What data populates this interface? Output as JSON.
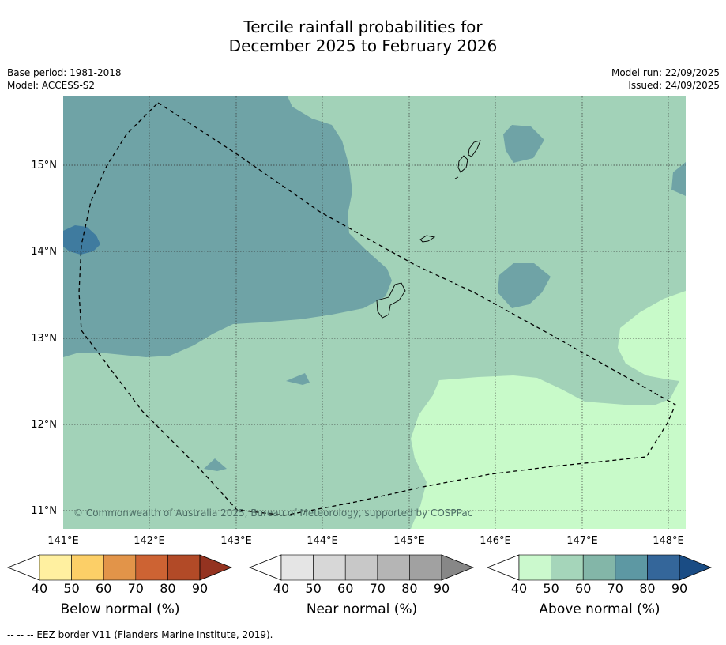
{
  "title": {
    "line1": "Tercile rainfall probabilities for",
    "line2": "December 2025 to February 2026"
  },
  "meta_left": {
    "base_period": "Base period: 1981-2018",
    "model": "Model: ACCESS-S2"
  },
  "meta_right": {
    "model_run": "Model run: 22/09/2025",
    "issued": "Issued: 24/09/2025"
  },
  "map": {
    "lon_labels": [
      "141°E",
      "142°E",
      "143°E",
      "144°E",
      "145°E",
      "146°E",
      "147°E",
      "148°E"
    ],
    "lat_labels": [
      "15°N",
      "14°N",
      "13°N",
      "12°N",
      "11°N"
    ],
    "credit": "© Commonwealth of Australia 2025, Bureau of Meteorology, supported by COSPPac",
    "colors": {
      "above_50_60": "#a2d2b8",
      "above_70_80": "#6fa3a6",
      "above_80_90": "#3f7b9f",
      "above_40_50": "#c8fac9"
    }
  },
  "legends": {
    "below": {
      "title": "Below normal (%)",
      "ticks": [
        "40",
        "50",
        "60",
        "70",
        "80",
        "90"
      ],
      "colors": [
        "#fff0a0",
        "#fccf67",
        "#e29449",
        "#cd6333",
        "#b24a27",
        "#943320"
      ]
    },
    "near": {
      "title": "Near normal (%)",
      "ticks": [
        "40",
        "50",
        "60",
        "70",
        "80",
        "90"
      ],
      "colors": [
        "#e5e5e5",
        "#d7d7d7",
        "#c8c8c8",
        "#b5b5b5",
        "#a1a1a1",
        "#878787"
      ]
    },
    "above": {
      "title": "Above normal (%)",
      "ticks": [
        "40",
        "50",
        "60",
        "70",
        "80",
        "90"
      ],
      "colors": [
        "#cbf9cd",
        "#a5d5ba",
        "#83b6a8",
        "#5d98a3",
        "#34669a",
        "#1a4c84"
      ]
    }
  },
  "footer": "--  --  -- EEZ border V11 (Flanders Marine Institute, 2019)."
}
